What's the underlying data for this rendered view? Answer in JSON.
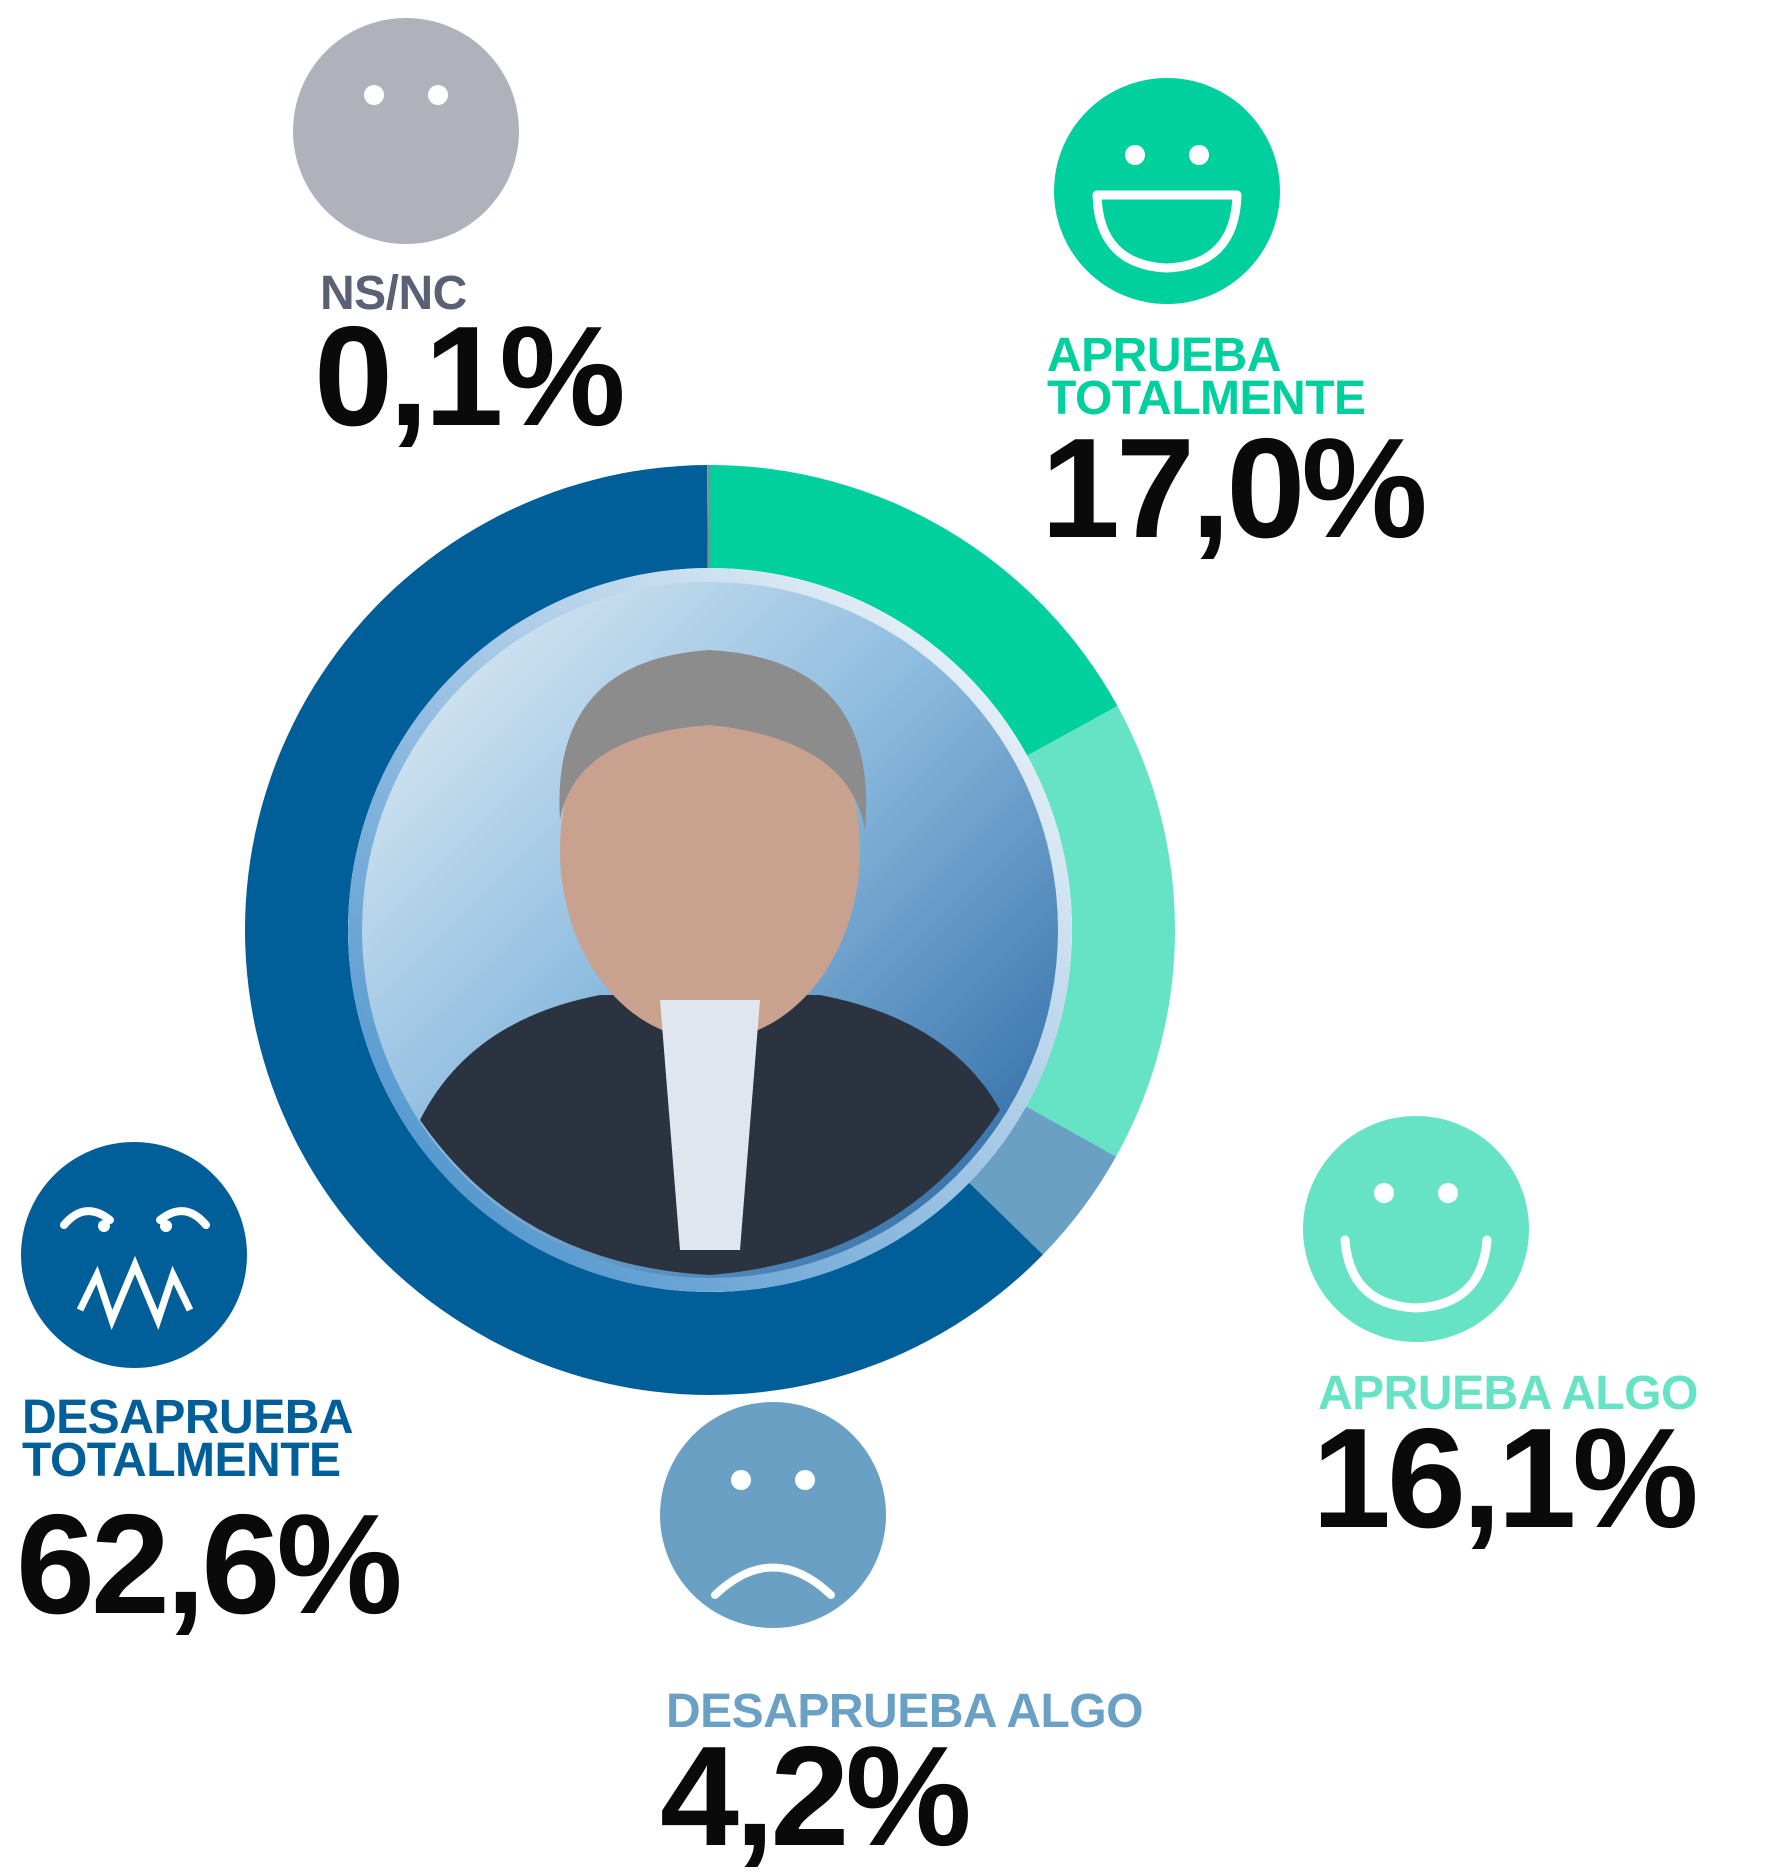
{
  "chart_data": {
    "type": "donut",
    "categories": [
      "APRUEBA TOTALMENTE",
      "APRUEBA ALGO",
      "DESAPRUEBA ALGO",
      "DESAPRUEBA TOTALMENTE",
      "NS/NC"
    ],
    "values": [
      17.0,
      16.1,
      4.2,
      62.6,
      0.1
    ],
    "value_labels": [
      "17,0%",
      "16,1%",
      "4,2%",
      "62,6%",
      "0,1%"
    ],
    "colors": [
      "#00d09e",
      "#66e3c4",
      "#6aa0c4",
      "#005f98",
      "#8a8a8a"
    ]
  }
}
